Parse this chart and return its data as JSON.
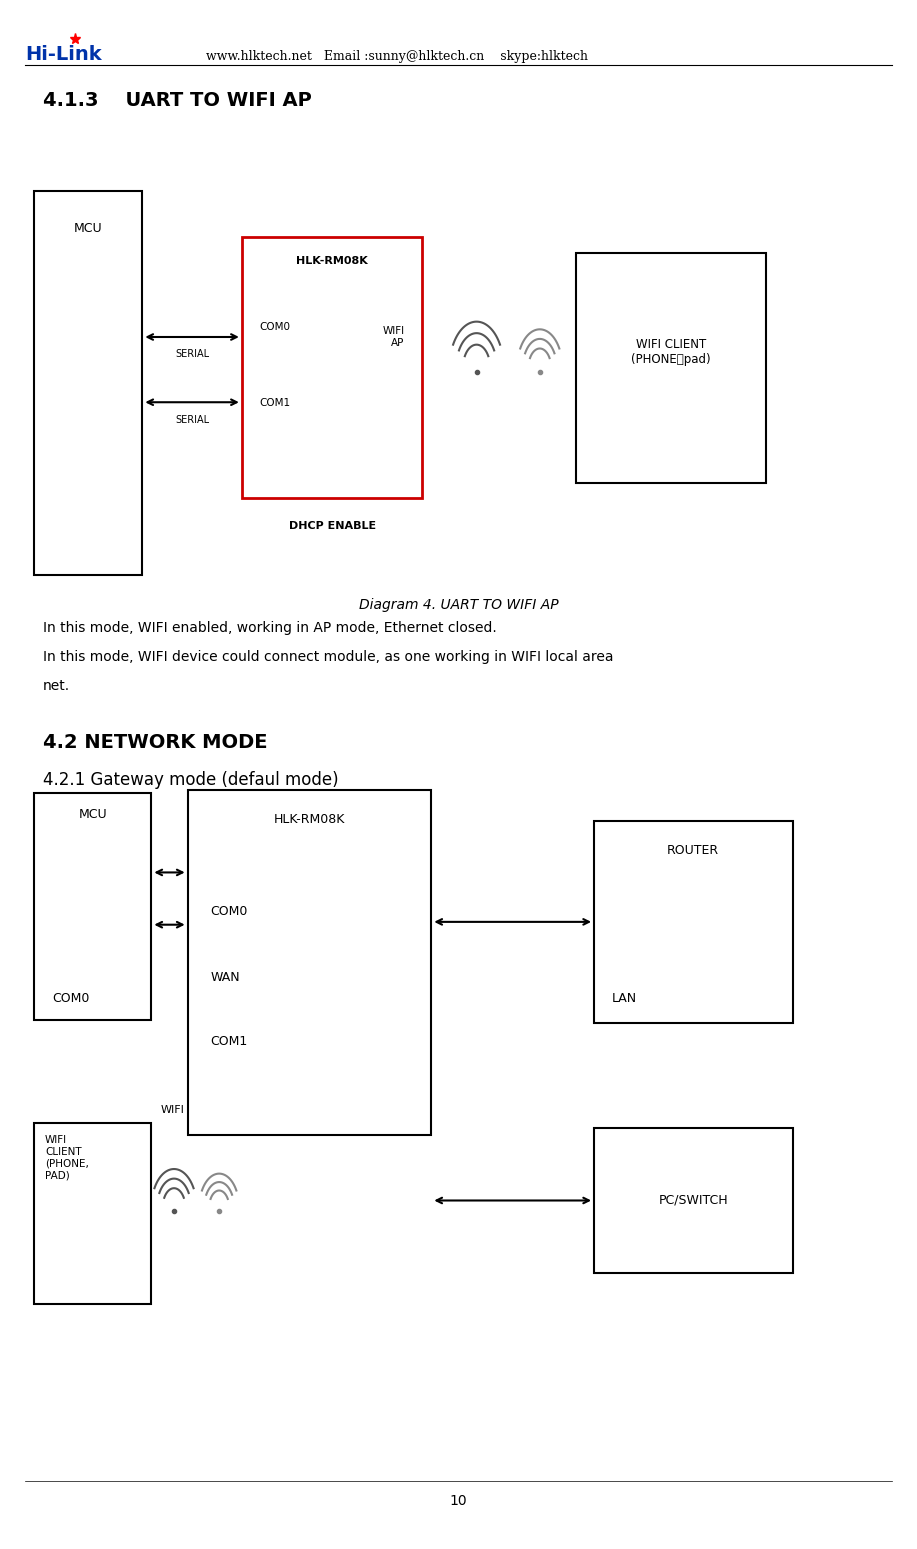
{
  "page_width": 9.17,
  "page_height": 15.49,
  "background_color": "#ffffff",
  "header_text": "www.hlktech.net   Email :sunny@hlktech.cn    skype:hlktech",
  "section_413_title": "4.1.3    UART TO WIFI AP",
  "diagram4_caption": "Diagram 4. UART TO WIFI AP",
  "body_text_line1": "In this mode, WIFI enabled, working in AP mode, Ethernet closed.",
  "body_text_line2": "In this mode, WIFI device could connect module, as one working in WIFI local area",
  "body_text_line3": "net.",
  "section_42_title": "4.2 NETWORK MODE",
  "section_421_title": "4.2.1 Gateway mode (defaul mode)",
  "page_number": "10",
  "colors": {
    "black": "#000000",
    "red": "#cc0000",
    "white": "#ffffff",
    "gray": "#888888"
  }
}
